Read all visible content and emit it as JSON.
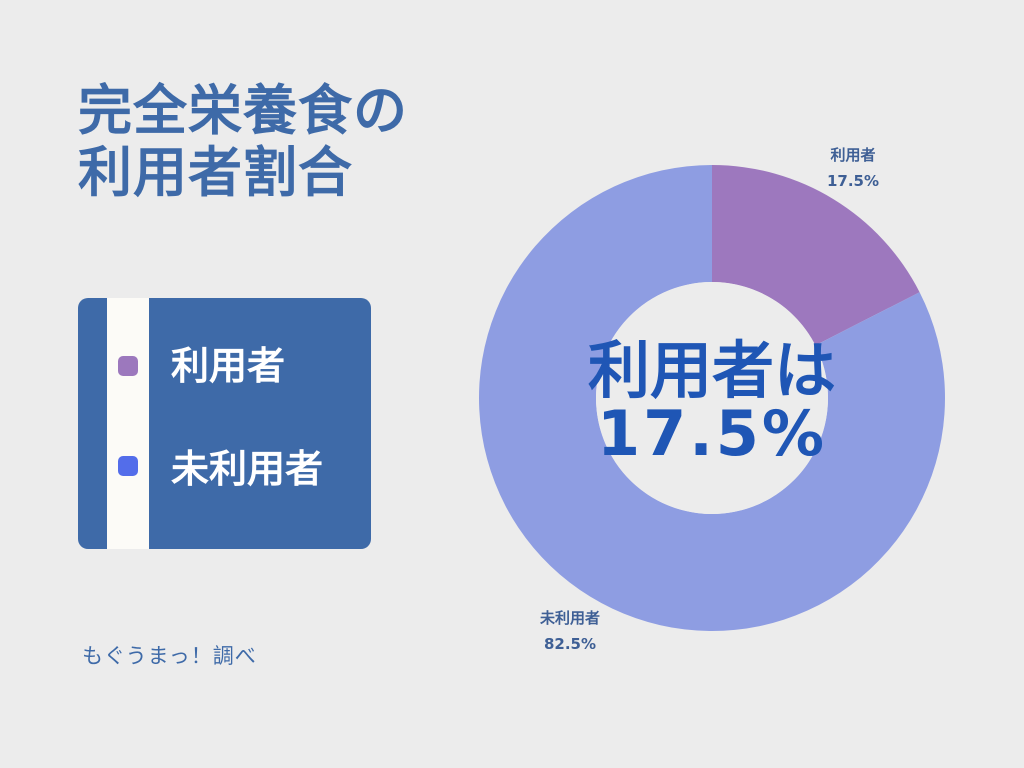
{
  "title_lines": [
    "完全栄養食の",
    "利用者割合"
  ],
  "legend": [
    {
      "label": "利用者",
      "color": "#9c78bd"
    },
    {
      "label": "未利用者",
      "color": "#536dea"
    }
  ],
  "source": "もぐうまっ！調べ",
  "center_label_lines": [
    "利用者は",
    "17.5%"
  ],
  "chart_data": {
    "type": "pie",
    "donut": true,
    "categories": [
      "利用者",
      "未利用者"
    ],
    "values": [
      17.5,
      82.5
    ],
    "value_labels": [
      "17.5%",
      "82.5%"
    ],
    "colors": [
      "#9d78be",
      "#8e9de2"
    ],
    "start_angle_deg": 0,
    "direction": "clockwise",
    "legend_placement": "left"
  }
}
